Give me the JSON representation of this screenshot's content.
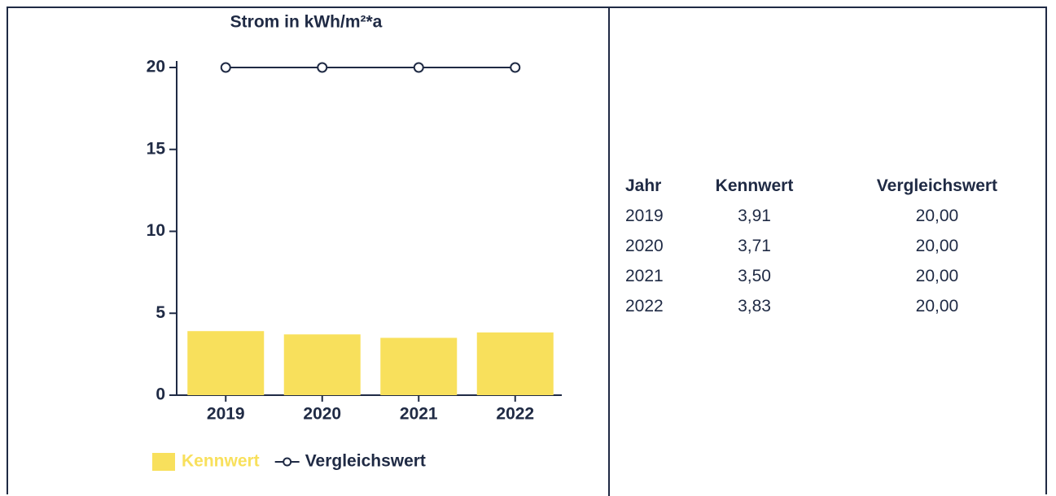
{
  "chart_data": {
    "type": "bar",
    "title": "Strom in kWh/m²*a",
    "categories": [
      "2019",
      "2020",
      "2021",
      "2022"
    ],
    "series": [
      {
        "name": "Kennwert",
        "type": "bar",
        "color": "#f8e05c",
        "values": [
          3.91,
          3.71,
          3.5,
          3.83
        ]
      },
      {
        "name": "Vergleichswert",
        "type": "line",
        "color": "#1f2a44",
        "values": [
          20,
          20,
          20,
          20
        ]
      }
    ],
    "ylim": [
      0,
      20
    ],
    "yticks": [
      0,
      5,
      10,
      15,
      20
    ],
    "legend": "bottom"
  },
  "table": {
    "headers": [
      "Jahr",
      "Kennwert",
      "Vergleichswert"
    ],
    "rows": [
      [
        "2019",
        "3,91",
        "20,00"
      ],
      [
        "2020",
        "3,71",
        "20,00"
      ],
      [
        "2021",
        "3,50",
        "20,00"
      ],
      [
        "2022",
        "3,83",
        "20,00"
      ]
    ]
  }
}
